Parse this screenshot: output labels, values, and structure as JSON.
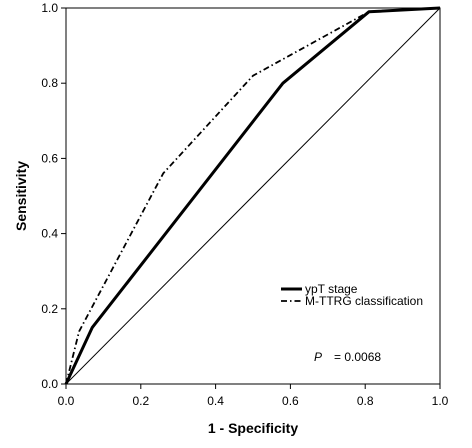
{
  "chart_data": {
    "type": "line",
    "xlabel": "1 - Specificity",
    "ylabel": "Sensitivity",
    "xlim": [
      0,
      1
    ],
    "ylim": [
      0,
      1
    ],
    "x_ticks": [
      "0.0",
      "0.2",
      "0.4",
      "0.6",
      "0.8",
      "1.0"
    ],
    "y_ticks": [
      "0.0",
      "0.2",
      "0.4",
      "0.6",
      "0.8",
      "1.0"
    ],
    "grid": false,
    "legend_position": "bottom-right",
    "series": [
      {
        "name": "ypT stage",
        "style": "solid-thick",
        "points": [
          [
            0,
            0
          ],
          [
            0.07,
            0.15
          ],
          [
            0.58,
            0.8
          ],
          [
            0.81,
            0.99
          ],
          [
            1,
            1
          ]
        ]
      },
      {
        "name": "M-TTRG classification",
        "style": "dash-dot",
        "points": [
          [
            0,
            0
          ],
          [
            0.035,
            0.14
          ],
          [
            0.26,
            0.56
          ],
          [
            0.5,
            0.82
          ],
          [
            0.81,
            0.99
          ],
          [
            1,
            1
          ]
        ]
      }
    ],
    "reference_line": [
      [
        0,
        0
      ],
      [
        1,
        1
      ]
    ],
    "annotation": {
      "italic": "P",
      "text": "= 0.0068"
    }
  },
  "colors": {
    "line": "#000000",
    "background": "#ffffff"
  }
}
